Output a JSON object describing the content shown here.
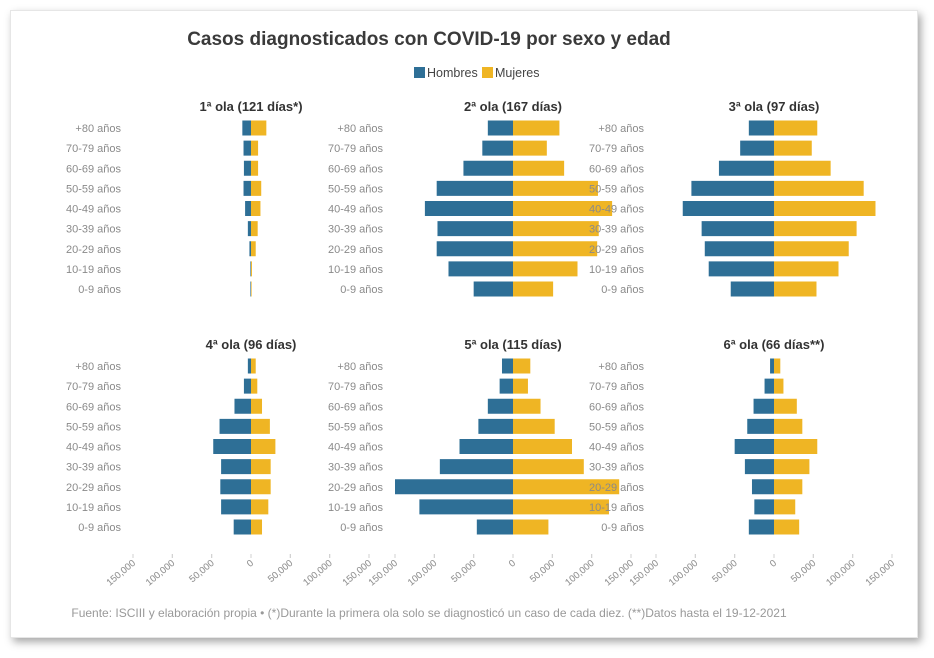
{
  "title": "Casos diagnosticados con COVID-19 por sexo y edad",
  "legend": [
    {
      "name": "Hombres",
      "color": "#2e6f96"
    },
    {
      "name": "Mujeres",
      "color": "#efb524"
    }
  ],
  "source": "Fuente: ISCIII y elaboración propia • (*)Durante la primera ola solo se diagnosticó un caso de cada diez. (**)Datos hasta el 19-12-2021",
  "chart_data": {
    "type": "bar",
    "orientation": "horizontal-population-pyramid",
    "categories": [
      "+80 años",
      "70-79 años",
      "60-69 años",
      "50-59 años",
      "40-49 años",
      "30-39 años",
      "20-29 años",
      "10-19 años",
      "0-9 años"
    ],
    "xlim": [
      -150000,
      150000
    ],
    "ticks": [
      {
        "value": -150000,
        "label": "150,000"
      },
      {
        "value": -100000,
        "label": "100,000"
      },
      {
        "value": -50000,
        "label": "50,000"
      },
      {
        "value": 0,
        "label": "0"
      },
      {
        "value": 50000,
        "label": "50,000"
      },
      {
        "value": 100000,
        "label": "100,000"
      },
      {
        "value": 150000,
        "label": "150,000"
      }
    ],
    "panels": [
      {
        "title": "1ª ola (121 días*)",
        "series": [
          {
            "name": "Hombres",
            "values": [
              11000,
              9500,
              9000,
              9500,
              7500,
              4000,
              2000,
              700,
              300
            ]
          },
          {
            "name": "Mujeres",
            "values": [
              19500,
              9000,
              9000,
              13000,
              12000,
              8500,
              6000,
              1200,
              500
            ]
          }
        ]
      },
      {
        "title": "2ª ola (167 días)",
        "series": [
          {
            "name": "Hombres",
            "values": [
              32000,
              39000,
              63000,
              97000,
              112000,
              96000,
              97000,
              82000,
              50000
            ]
          },
          {
            "name": "Mujeres",
            "values": [
              59000,
              43000,
              65000,
              108000,
              126000,
              109000,
              107000,
              82000,
              51000
            ]
          }
        ]
      },
      {
        "title": "3ª ola (97 días)",
        "series": [
          {
            "name": "Hombres",
            "values": [
              32000,
              43000,
              70000,
              105000,
              116000,
              92000,
              88000,
              83000,
              55000
            ]
          },
          {
            "name": "Mujeres",
            "values": [
              55000,
              48000,
              72000,
              114000,
              129000,
              105000,
              95000,
              82000,
              54000
            ]
          }
        ]
      },
      {
        "title": "4ª ola (96 días)",
        "series": [
          {
            "name": "Hombres",
            "values": [
              4000,
              9000,
              21000,
              40000,
              48000,
              38000,
              39000,
              38000,
              22000
            ]
          },
          {
            "name": "Mujeres",
            "values": [
              6000,
              8000,
              14000,
              24000,
              31000,
              25000,
              25000,
              22000,
              14000
            ]
          }
        ]
      },
      {
        "title": "5ª ola (115 días)",
        "series": [
          {
            "name": "Hombres",
            "values": [
              14000,
              17000,
              32000,
              44000,
              68000,
              93000,
              150000,
              119000,
              46000
            ]
          },
          {
            "name": "Mujeres",
            "values": [
              22000,
              19000,
              35000,
              53000,
              75000,
              90000,
              135000,
              122000,
              45000
            ]
          }
        ]
      },
      {
        "title": "6ª ola (66 días**)",
        "series": [
          {
            "name": "Hombres",
            "values": [
              5000,
              12000,
              26000,
              34000,
              50000,
              37000,
              28000,
              25000,
              32000
            ]
          },
          {
            "name": "Mujeres",
            "values": [
              8000,
              12000,
              29000,
              36000,
              55000,
              45000,
              36000,
              27000,
              32000
            ]
          }
        ]
      }
    ]
  }
}
